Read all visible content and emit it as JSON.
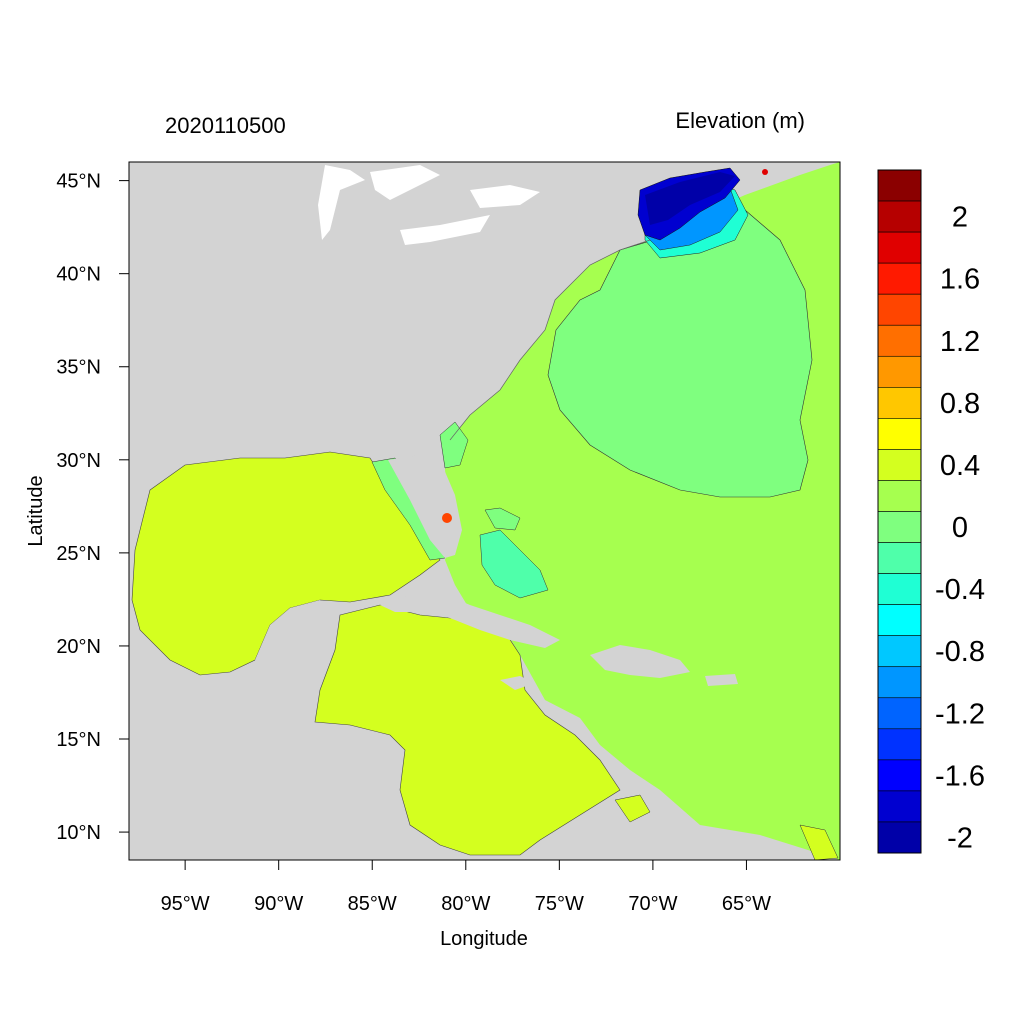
{
  "map": {
    "date_label": "2020110500",
    "title": "Elevation (m)",
    "x_axis_label": "Longitude",
    "y_axis_label": "Latitude",
    "lon_range": [
      -98,
      -60
    ],
    "lat_range": [
      8.5,
      46
    ],
    "lon_ticks": [
      {
        "value": -95,
        "label": "95°W"
      },
      {
        "value": -90,
        "label": "90°W"
      },
      {
        "value": -85,
        "label": "85°W"
      },
      {
        "value": -80,
        "label": "80°W"
      },
      {
        "value": -75,
        "label": "75°W"
      },
      {
        "value": -70,
        "label": "70°W"
      },
      {
        "value": -65,
        "label": "65°W"
      }
    ],
    "lat_ticks": [
      {
        "value": 45,
        "label": "45°N"
      },
      {
        "value": 40,
        "label": "40°N"
      },
      {
        "value": 35,
        "label": "35°N"
      },
      {
        "value": 30,
        "label": "30°N"
      },
      {
        "value": 25,
        "label": "25°N"
      },
      {
        "value": 20,
        "label": "20°N"
      },
      {
        "value": 15,
        "label": "15°N"
      },
      {
        "value": 10,
        "label": "10°N"
      }
    ],
    "land_color": "#d3d3d3",
    "ocean_zero_color": "#a6ff4f",
    "gulf_color": "#d4ff1f"
  },
  "colorbar": {
    "colors": [
      "#8b0000",
      "#b60000",
      "#e00000",
      "#ff1a00",
      "#ff4500",
      "#ff6f00",
      "#ff9800",
      "#ffc700",
      "#ffff00",
      "#d4ff1f",
      "#a6ff4f",
      "#7fff7f",
      "#4fffaa",
      "#1fffd4",
      "#00ffff",
      "#00c8ff",
      "#0096ff",
      "#0064ff",
      "#0032ff",
      "#0000ff",
      "#0000d0",
      "#0000a8"
    ],
    "tick_labels": [
      {
        "after_bin": 2,
        "label": "2"
      },
      {
        "after_bin": 4,
        "label": "1.6"
      },
      {
        "after_bin": 6,
        "label": "1.2"
      },
      {
        "after_bin": 8,
        "label": "0.8"
      },
      {
        "after_bin": 10,
        "label": "0.4"
      },
      {
        "after_bin": 12,
        "label": "0"
      },
      {
        "after_bin": 14,
        "label": "-0.4"
      },
      {
        "after_bin": 16,
        "label": "-0.8"
      },
      {
        "after_bin": 18,
        "label": "-1.2"
      },
      {
        "after_bin": 20,
        "label": "-1.6"
      },
      {
        "after_bin": 22,
        "label": "-2"
      }
    ]
  }
}
